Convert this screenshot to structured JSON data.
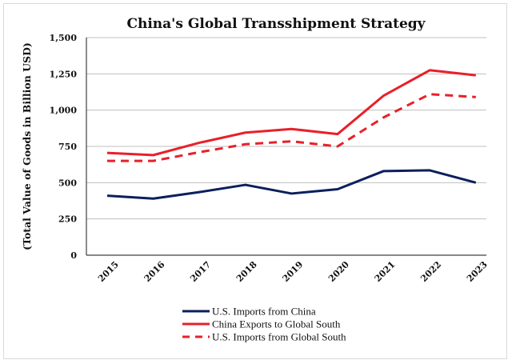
{
  "chart_data": {
    "type": "line",
    "title": "China's Global Transshipment Strategy",
    "xlabel": "",
    "ylabel": "(Total Value of Goods in Billion USD)",
    "x": [
      "2015",
      "2016",
      "2017",
      "2018",
      "2019",
      "2020",
      "2021",
      "2022",
      "2023"
    ],
    "ylim": [
      0,
      1500
    ],
    "yticks": [
      0,
      250,
      500,
      750,
      1000,
      1250,
      1500
    ],
    "ytick_labels": [
      "0",
      "250",
      "500",
      "750",
      "1,000",
      "1,250",
      "1,500"
    ],
    "grid": true,
    "legend_position": "bottom",
    "series": [
      {
        "name": "U.S. Imports from China",
        "color": "#0b1f5c",
        "style": "solid",
        "values": [
          410,
          390,
          435,
          485,
          425,
          455,
          580,
          585,
          500
        ]
      },
      {
        "name": "China Exports to Global South",
        "color": "#e8202a",
        "style": "solid",
        "values": [
          705,
          690,
          775,
          845,
          870,
          835,
          1100,
          1275,
          1240
        ]
      },
      {
        "name": "U.S. Imports from Global South",
        "color": "#e8202a",
        "style": "dashed",
        "values": [
          650,
          650,
          710,
          765,
          785,
          750,
          950,
          1110,
          1090
        ]
      }
    ]
  }
}
